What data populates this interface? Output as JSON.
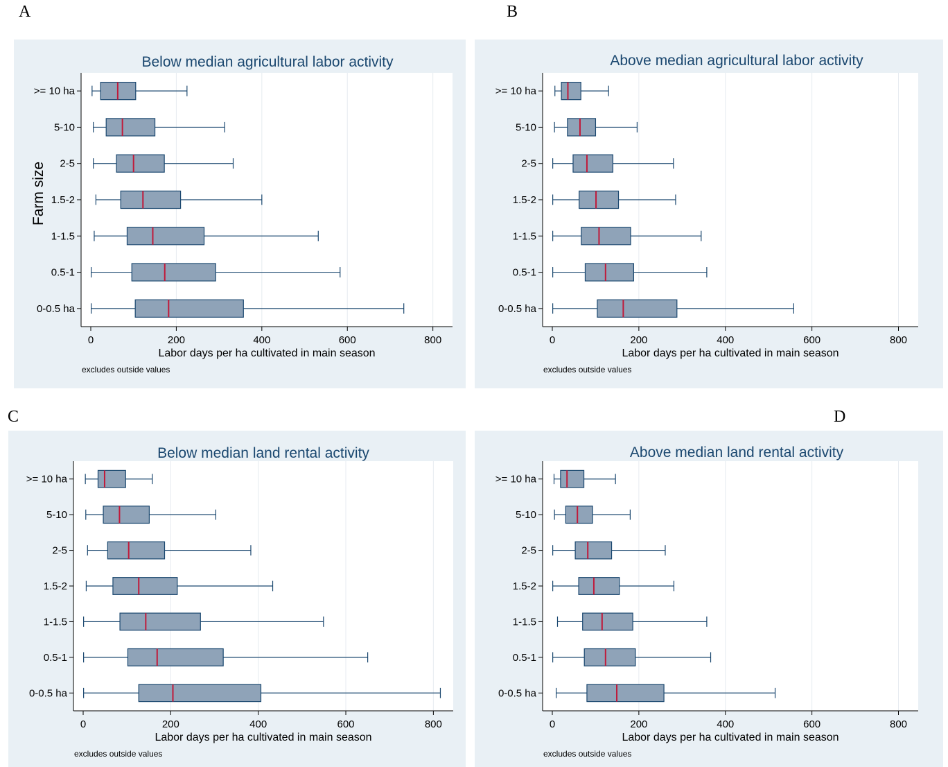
{
  "panel_letters": [
    "A",
    "B",
    "C",
    "D"
  ],
  "chart_data": [
    {
      "type": "box",
      "title": "Below median agricultural labor activity",
      "xlabel": "Labor days per ha cultivated in main season",
      "ylabel": "Farm size",
      "note": "excludes outside values",
      "xlim": [
        0,
        820
      ],
      "xticks": [
        0,
        200,
        400,
        600,
        800
      ],
      "categories": [
        ">= 10 ha",
        "5-10",
        "2-5",
        "1.5-2",
        "1-1.5",
        "0.5-1",
        "0-0.5 ha"
      ],
      "boxes": [
        {
          "min": 3,
          "q1": 23,
          "median": 63,
          "q3": 105,
          "max": 225
        },
        {
          "min": 6,
          "q1": 36,
          "median": 74,
          "q3": 150,
          "max": 313
        },
        {
          "min": 6,
          "q1": 60,
          "median": 100,
          "q3": 172,
          "max": 333
        },
        {
          "min": 12,
          "q1": 70,
          "median": 122,
          "q3": 210,
          "max": 400
        },
        {
          "min": 8,
          "q1": 85,
          "median": 145,
          "q3": 265,
          "max": 532
        },
        {
          "min": 1,
          "q1": 96,
          "median": 173,
          "q3": 292,
          "max": 583
        },
        {
          "min": 1,
          "q1": 104,
          "median": 182,
          "q3": 357,
          "max": 732
        }
      ]
    },
    {
      "type": "box",
      "title": "Above median agricultural labor activity",
      "xlabel": "Labor days per ha cultivated in main season",
      "note": "excludes outside values",
      "xlim": [
        0,
        820
      ],
      "xticks": [
        0,
        200,
        400,
        600,
        800
      ],
      "categories": [
        ">= 10 ha",
        "5-10",
        "2-5",
        "1.5-2",
        "1-1.5",
        "0.5-1",
        "0-0.5 ha"
      ],
      "boxes": [
        {
          "min": 6,
          "q1": 21,
          "median": 36,
          "q3": 66,
          "max": 130
        },
        {
          "min": 5,
          "q1": 35,
          "median": 64,
          "q3": 100,
          "max": 196
        },
        {
          "min": 1,
          "q1": 48,
          "median": 80,
          "q3": 140,
          "max": 280
        },
        {
          "min": 1,
          "q1": 62,
          "median": 101,
          "q3": 153,
          "max": 285
        },
        {
          "min": 1,
          "q1": 67,
          "median": 108,
          "q3": 181,
          "max": 344
        },
        {
          "min": 1,
          "q1": 76,
          "median": 123,
          "q3": 188,
          "max": 357
        },
        {
          "min": 1,
          "q1": 104,
          "median": 164,
          "q3": 288,
          "max": 558
        }
      ]
    },
    {
      "type": "box",
      "title": "Below median land rental activity",
      "xlabel": "Labor days per ha cultivated in main season",
      "note": "excludes outside values",
      "xlim": [
        0,
        820
      ],
      "xticks": [
        0,
        200,
        400,
        600,
        800
      ],
      "categories": [
        ">= 10 ha",
        "5-10",
        "2-5",
        "1.5-2",
        "1-1.5",
        "0.5-1",
        "0-0.5 ha"
      ],
      "boxes": [
        {
          "min": 5,
          "q1": 34,
          "median": 49,
          "q3": 97,
          "max": 158
        },
        {
          "min": 6,
          "q1": 46,
          "median": 83,
          "q3": 151,
          "max": 303
        },
        {
          "min": 10,
          "q1": 56,
          "median": 104,
          "q3": 186,
          "max": 383
        },
        {
          "min": 7,
          "q1": 68,
          "median": 127,
          "q3": 215,
          "max": 433
        },
        {
          "min": 1,
          "q1": 84,
          "median": 143,
          "q3": 268,
          "max": 549
        },
        {
          "min": 1,
          "q1": 102,
          "median": 169,
          "q3": 320,
          "max": 650
        },
        {
          "min": 1,
          "q1": 127,
          "median": 205,
          "q3": 406,
          "max": 816
        }
      ]
    },
    {
      "type": "box",
      "title": "Above median land rental activity",
      "xlabel": "Labor days per ha cultivated in main season",
      "note": "excludes outside values",
      "xlim": [
        0,
        820
      ],
      "xticks": [
        0,
        200,
        400,
        600,
        800
      ],
      "categories": [
        ">= 10 ha",
        "5-10",
        "2-5",
        "1.5-2",
        "1-1.5",
        "0.5-1",
        "0-0.5 ha"
      ],
      "boxes": [
        {
          "min": 4,
          "q1": 19,
          "median": 34,
          "q3": 73,
          "max": 146
        },
        {
          "min": 5,
          "q1": 31,
          "median": 58,
          "q3": 93,
          "max": 180
        },
        {
          "min": 1,
          "q1": 53,
          "median": 82,
          "q3": 137,
          "max": 261
        },
        {
          "min": 1,
          "q1": 61,
          "median": 96,
          "q3": 155,
          "max": 281
        },
        {
          "min": 12,
          "q1": 70,
          "median": 115,
          "q3": 186,
          "max": 357
        },
        {
          "min": 1,
          "q1": 74,
          "median": 123,
          "q3": 192,
          "max": 366
        },
        {
          "min": 9,
          "q1": 80,
          "median": 149,
          "q3": 258,
          "max": 515
        }
      ]
    }
  ],
  "colors": {
    "panel_bg": "#e9f0f5",
    "plot_bg": "#ffffff",
    "box_fill": "#8fa3b8",
    "box_stroke": "#1a476f",
    "median": "#c01a3a",
    "grid": "#e6ebf0",
    "title": "#1a476f"
  }
}
